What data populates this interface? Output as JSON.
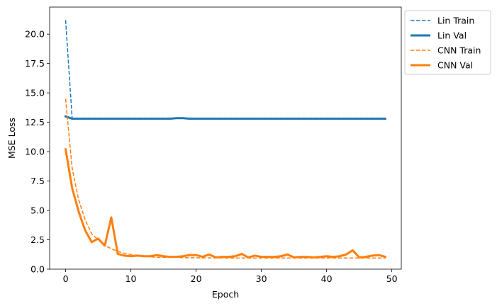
{
  "chart_data": {
    "type": "line",
    "xlabel": "Epoch",
    "ylabel": "MSE Loss",
    "xlim": [
      -2.45,
      51.45
    ],
    "ylim": [
      0.0,
      22.3
    ],
    "xticks": [
      0,
      10,
      20,
      30,
      40,
      50
    ],
    "yticks": [
      0.0,
      2.5,
      5.0,
      7.5,
      10.0,
      12.5,
      15.0,
      17.5,
      20.0
    ],
    "x": [
      0,
      1,
      2,
      3,
      4,
      5,
      6,
      7,
      8,
      9,
      10,
      11,
      12,
      13,
      14,
      15,
      16,
      17,
      18,
      19,
      20,
      21,
      22,
      23,
      24,
      25,
      26,
      27,
      28,
      29,
      30,
      31,
      32,
      33,
      34,
      35,
      36,
      37,
      38,
      39,
      40,
      41,
      42,
      43,
      44,
      45,
      46,
      47,
      48,
      49
    ],
    "legend_position": "outside upper right",
    "series": [
      {
        "name": "Lin Train",
        "color": "#1f77b4",
        "style": "dashed",
        "values": [
          21.2,
          12.85,
          12.85,
          12.85,
          12.85,
          12.85,
          12.85,
          12.85,
          12.85,
          12.85,
          12.85,
          12.85,
          12.85,
          12.85,
          12.85,
          12.85,
          12.85,
          12.85,
          12.85,
          12.85,
          12.85,
          12.85,
          12.85,
          12.85,
          12.85,
          12.85,
          12.85,
          12.85,
          12.85,
          12.85,
          12.85,
          12.85,
          12.85,
          12.85,
          12.85,
          12.85,
          12.85,
          12.85,
          12.85,
          12.85,
          12.85,
          12.85,
          12.85,
          12.85,
          12.85,
          12.85,
          12.85,
          12.85,
          12.85,
          12.85
        ]
      },
      {
        "name": "Lin Val",
        "color": "#1f77b4",
        "style": "solid",
        "values": [
          13.0,
          12.8,
          12.8,
          12.8,
          12.8,
          12.8,
          12.8,
          12.8,
          12.8,
          12.8,
          12.8,
          12.8,
          12.8,
          12.8,
          12.8,
          12.8,
          12.8,
          12.85,
          12.85,
          12.8,
          12.8,
          12.8,
          12.8,
          12.8,
          12.8,
          12.8,
          12.8,
          12.8,
          12.8,
          12.8,
          12.8,
          12.8,
          12.8,
          12.8,
          12.8,
          12.8,
          12.8,
          12.8,
          12.8,
          12.8,
          12.8,
          12.8,
          12.8,
          12.8,
          12.8,
          12.8,
          12.8,
          12.8,
          12.8,
          12.8
        ]
      },
      {
        "name": "CNN Train",
        "color": "#ff7f0e",
        "style": "dashed",
        "values": [
          14.5,
          8.6,
          5.9,
          4.2,
          3.0,
          2.5,
          2.0,
          1.75,
          1.5,
          1.35,
          1.25,
          1.15,
          1.1,
          1.05,
          1.0,
          1.0,
          1.0,
          1.0,
          0.98,
          0.97,
          0.97,
          0.96,
          0.96,
          0.96,
          0.96,
          0.95,
          0.95,
          0.95,
          0.95,
          0.95,
          0.95,
          0.95,
          0.95,
          0.95,
          0.95,
          0.95,
          0.95,
          0.95,
          0.95,
          0.95,
          0.95,
          0.95,
          0.95,
          0.95,
          0.95,
          0.95,
          0.95,
          0.95,
          0.95,
          0.95
        ]
      },
      {
        "name": "CNN Val",
        "color": "#ff7f0e",
        "style": "solid",
        "values": [
          10.2,
          6.9,
          4.9,
          3.3,
          2.3,
          2.6,
          2.0,
          4.4,
          1.3,
          1.15,
          1.1,
          1.15,
          1.1,
          1.1,
          1.2,
          1.1,
          1.05,
          1.05,
          1.1,
          1.2,
          1.2,
          1.05,
          1.25,
          1.0,
          1.05,
          1.05,
          1.1,
          1.3,
          1.0,
          1.15,
          1.05,
          1.05,
          1.05,
          1.1,
          1.25,
          1.0,
          1.05,
          1.05,
          1.0,
          1.05,
          1.1,
          1.05,
          1.1,
          1.25,
          1.6,
          1.0,
          1.05,
          1.15,
          1.2,
          1.05
        ]
      }
    ]
  }
}
